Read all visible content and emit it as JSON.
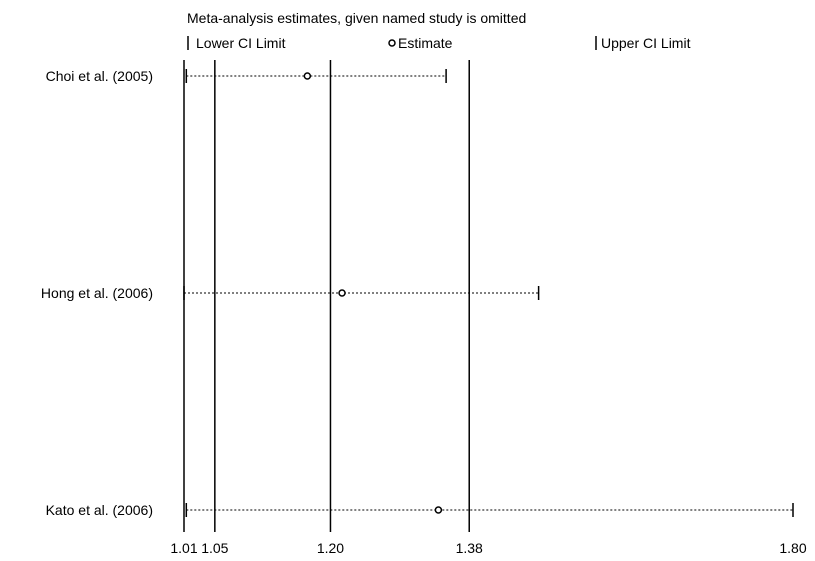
{
  "chart_data": {
    "type": "sensitivity-analysis",
    "title": "Meta-analysis estimates, given named study is omitted",
    "legend": {
      "lower": "Lower CI Limit",
      "estimate": "Estimate",
      "upper": "Upper CI Limit"
    },
    "x_ticks": [
      {
        "value": 1.01,
        "label": "1.01"
      },
      {
        "value": 1.05,
        "label": "1.05"
      },
      {
        "value": 1.2,
        "label": "1.20"
      },
      {
        "value": 1.38,
        "label": "1.38"
      },
      {
        "value": 1.8,
        "label": "1.80"
      }
    ],
    "xlim": [
      1.01,
      1.8
    ],
    "studies": [
      {
        "label": "Choi et al. (2005)",
        "lower": 1.013,
        "estimate": 1.17,
        "upper": 1.35
      },
      {
        "label": "Hong et al. (2006)",
        "lower": 1.01,
        "estimate": 1.215,
        "upper": 1.47
      },
      {
        "label": "Kato et al. (2006)",
        "lower": 1.013,
        "estimate": 1.34,
        "upper": 1.8
      }
    ]
  }
}
